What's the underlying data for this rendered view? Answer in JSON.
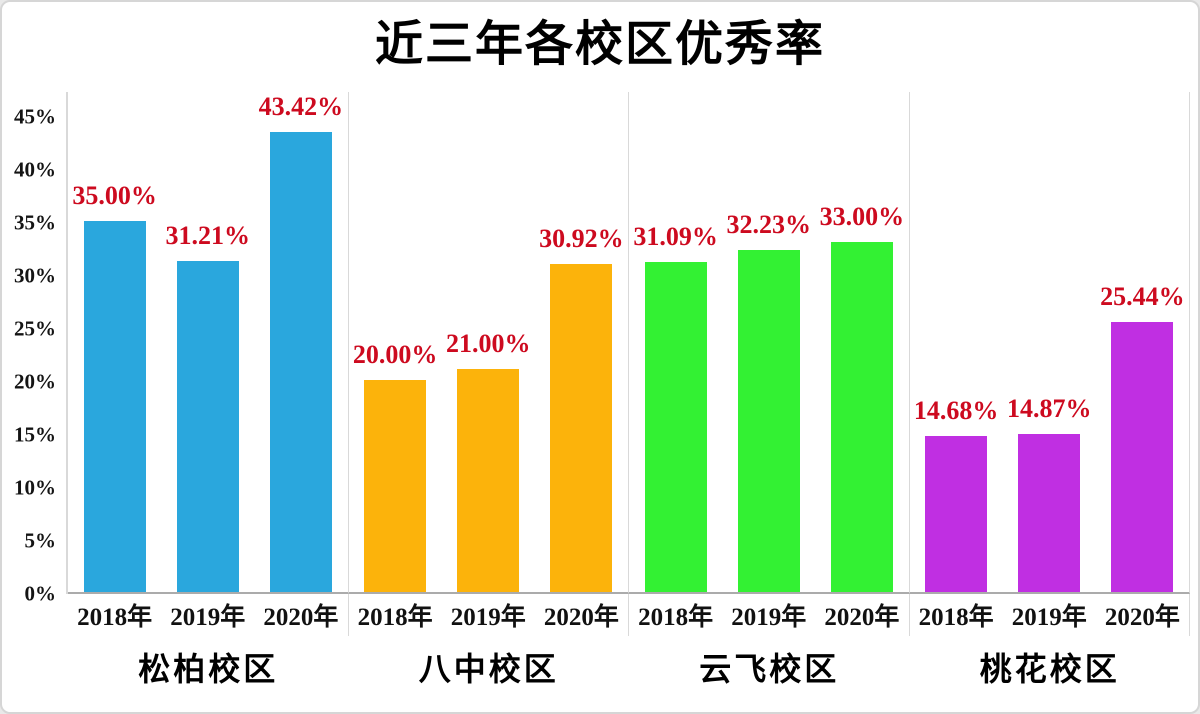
{
  "colors": {
    "value_label": "#cd0a1f",
    "axis_text": "#141414",
    "separator": "#d9d9d9",
    "axis_line": "#ababab",
    "title": "#000000",
    "background": "#ffffff"
  },
  "chart_data": {
    "type": "bar",
    "title": "近三年各校区优秀率",
    "xlabel": "",
    "ylabel": "",
    "ylim": [
      0,
      45
    ],
    "grid": "vertical group separators only",
    "legend": "none",
    "value_labels_position": "above bars, red bold",
    "yticks": [
      0,
      5,
      10,
      15,
      20,
      25,
      30,
      35,
      40,
      45
    ],
    "ytick_labels": [
      "0%",
      "5%",
      "10%",
      "15%",
      "20%",
      "25%",
      "30%",
      "35%",
      "40%",
      "45%"
    ],
    "categories": [
      "2018年",
      "2019年",
      "2020年"
    ],
    "groups": [
      {
        "name": "松柏校区",
        "color": "#2aa7dd",
        "values": [
          35.0,
          31.21,
          43.42
        ],
        "value_labels": [
          "35.00%",
          "31.21%",
          "43.42%"
        ]
      },
      {
        "name": "八中校区",
        "color": "#fcb30b",
        "values": [
          20.0,
          21.0,
          30.92
        ],
        "value_labels": [
          "20.00%",
          "21.00%",
          "30.92%"
        ]
      },
      {
        "name": "云飞校区",
        "color": "#33f133",
        "values": [
          31.09,
          32.23,
          33.0
        ],
        "value_labels": [
          "31.09%",
          "32.23%",
          "33.00%"
        ]
      },
      {
        "name": "桃花校区",
        "color": "#c02fe2",
        "values": [
          14.68,
          14.87,
          25.44
        ],
        "value_labels": [
          "14.68%",
          "14.87%",
          "25.44%"
        ]
      }
    ]
  }
}
